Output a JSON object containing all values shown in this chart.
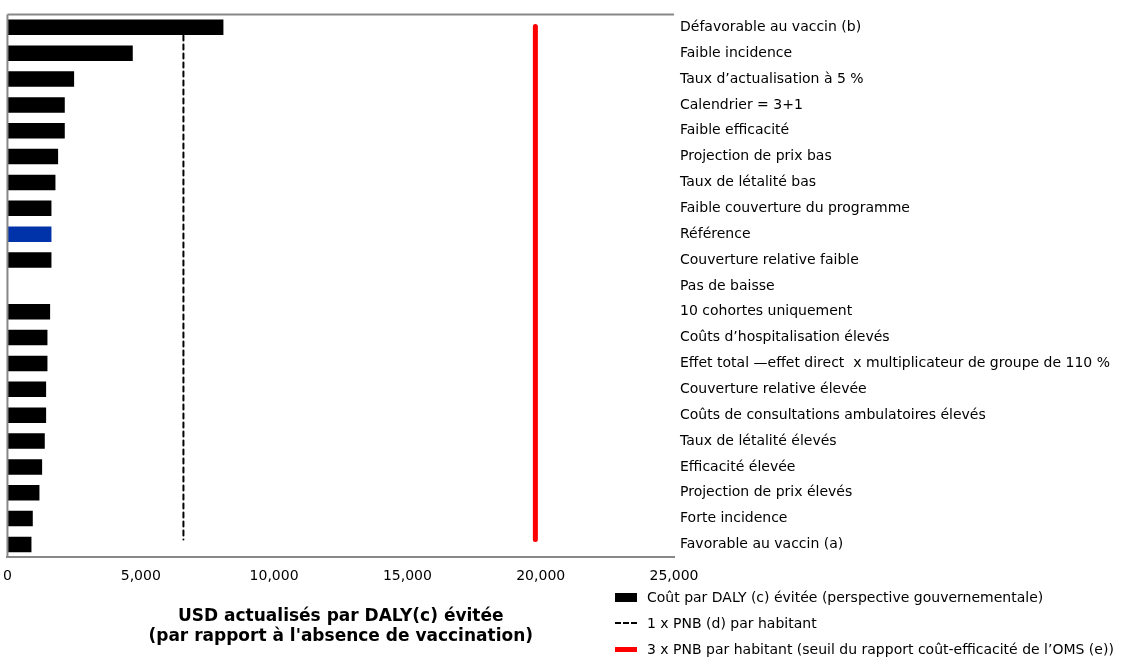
{
  "chart_data": {
    "type": "bar",
    "orientation": "horizontal",
    "xlabel": "USD actualisés par DALY(c) évitée\n(par rapport à l'absence de vaccination)",
    "categories": [
      "Défavorable au vaccin (b)",
      "Faible incidence",
      "Taux d’actualisation à 5 %",
      "Calendrier = 3+1",
      "Faible efficacité",
      "Projection de prix bas",
      "Taux de létalité bas",
      "Faible couverture du programme",
      "Référence",
      "Couverture relative faible",
      "Pas de baisse",
      "10 cohortes uniquement",
      "Coûts d’hospitalisation élevés",
      "Effet total —effet direct  x multiplicateur de groupe de 110 %",
      "Couverture relative élevée",
      "Coûts de consultations ambulatoires élevés",
      "Taux de létalité élevés",
      "Efficacité élevée",
      "Projection de prix élevés",
      "Forte incidence",
      "Favorable au vaccin (a)"
    ],
    "series": [
      {
        "name": "Coût par DALY (c) évitée (perspective gouvernementale)",
        "color": "#000000",
        "colors": [
          "#000000",
          "#000000",
          "#000000",
          "#000000",
          "#000000",
          "#000000",
          "#000000",
          "#000000",
          "#0033aa",
          "#000000",
          "#000000",
          "#000000",
          "#000000",
          "#000000",
          "#000000",
          "#000000",
          "#000000",
          "#000000",
          "#000000",
          "#000000",
          "#000000"
        ],
        "values": [
          8100,
          4700,
          2500,
          2150,
          2150,
          1900,
          1800,
          1650,
          1650,
          1650,
          null,
          1600,
          1500,
          1500,
          1450,
          1450,
          1400,
          1300,
          1200,
          950,
          900
        ]
      }
    ],
    "ref_lines": [
      {
        "axis": "x",
        "value": 6600,
        "label": "1 x PNB (d) par habitant",
        "color": "#000000",
        "line_style": "dashed"
      },
      {
        "axis": "x",
        "value": 19800,
        "label": "3 x PNB par habitant (seuil du rapport coût-efficacité de l’OMS (e))",
        "color": "#ff0000",
        "line_style": "solid"
      }
    ],
    "xlim": [
      0,
      25000
    ],
    "xticks": [
      {
        "value": 0,
        "label": "0"
      },
      {
        "value": 5000,
        "label": "5,000"
      },
      {
        "value": 10000,
        "label": "10,000"
      },
      {
        "value": 15000,
        "label": "15,000"
      },
      {
        "value": 20000,
        "label": "20,000"
      },
      {
        "value": 25000,
        "label": "25,000"
      }
    ],
    "grid": false,
    "legend": "bottom right"
  }
}
